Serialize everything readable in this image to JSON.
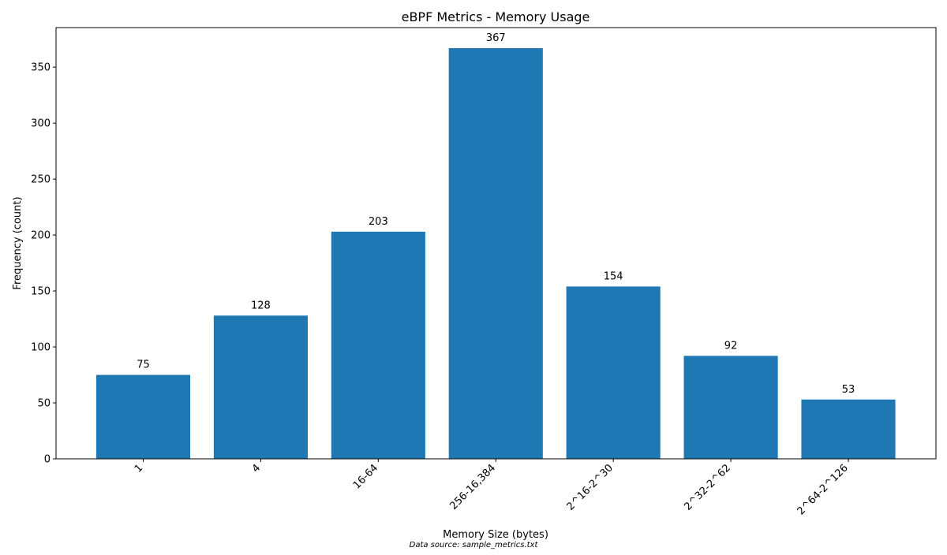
{
  "chart_data": {
    "type": "bar",
    "title": "eBPF Metrics - Memory Usage",
    "xlabel": "Memory Size (bytes)",
    "ylabel": "Frequency (count)",
    "categories": [
      "1",
      "4",
      "16-64",
      "256-16,384",
      "2^16-2^30",
      "2^32-2^62",
      "2^64-2^126"
    ],
    "values": [
      75,
      128,
      203,
      367,
      154,
      92,
      53
    ],
    "value_labels": [
      "75",
      "128",
      "203",
      "367",
      "154",
      "92",
      "53"
    ],
    "yticks": [
      0,
      50,
      100,
      150,
      200,
      250,
      300,
      350
    ],
    "ytick_labels": [
      "0",
      "50",
      "100",
      "150",
      "200",
      "250",
      "300",
      "350"
    ],
    "ylim": [
      0,
      385.35
    ],
    "bar_color": "#1f77b4",
    "grid": false,
    "legend": "none",
    "xtick_rotation": "45 degrees"
  },
  "footnote": "Data source: sample_metrics.txt"
}
